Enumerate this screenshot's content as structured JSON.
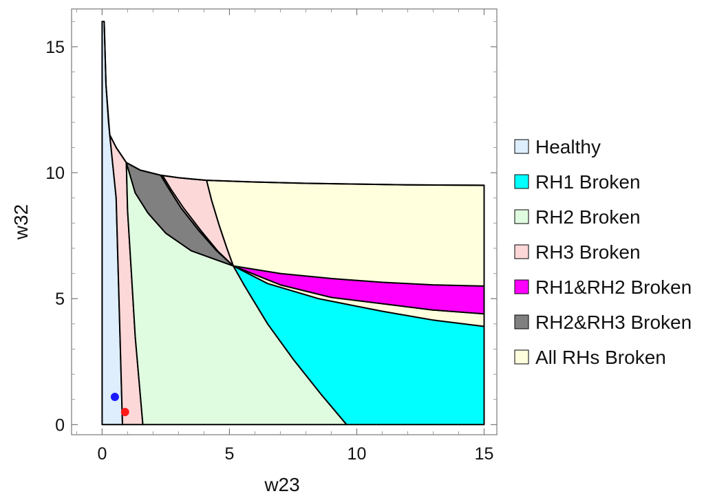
{
  "chart_data": {
    "type": "area",
    "title": "",
    "xlabel": "w23",
    "ylabel": "w32",
    "xlim": [
      -1.2,
      15.5
    ],
    "ylim": [
      -0.4,
      16.5
    ],
    "x_ticks": [
      0,
      5,
      10,
      15
    ],
    "y_ticks": [
      0,
      5,
      10,
      15
    ],
    "grid": false,
    "legend_position": "right",
    "legend": [
      {
        "key": "healthy",
        "label": "Healthy",
        "color": "#deeefc"
      },
      {
        "key": "rh1",
        "label": "RH1 Broken",
        "color": "#00ffff"
      },
      {
        "key": "rh2",
        "label": "RH2 Broken",
        "color": "#e0fce0"
      },
      {
        "key": "rh3",
        "label": "RH3 Broken",
        "color": "#fcd8d8"
      },
      {
        "key": "rh12",
        "label": "RH1&RH2 Broken",
        "color": "#ff00ff"
      },
      {
        "key": "rh23",
        "label": "RH2&RH3 Broken",
        "color": "#808080"
      },
      {
        "key": "all",
        "label": "All RHs Broken",
        "color": "#ffffde"
      }
    ],
    "regions": [
      {
        "key": "healthy",
        "points": [
          [
            0,
            0
          ],
          [
            0,
            16
          ],
          [
            0.08,
            16
          ],
          [
            0.15,
            13.5
          ],
          [
            0.25,
            12
          ],
          [
            0.3,
            11.5
          ],
          [
            0.55,
            9
          ],
          [
            0.8,
            0
          ]
        ]
      },
      {
        "key": "rh3",
        "points": [
          [
            0.8,
            0
          ],
          [
            0.55,
            9
          ],
          [
            0.3,
            11.5
          ],
          [
            0.55,
            11
          ],
          [
            0.75,
            10.7
          ],
          [
            0.95,
            10.4
          ],
          [
            1.0,
            8.5
          ],
          [
            1.15,
            6
          ],
          [
            1.3,
            3.5
          ],
          [
            1.6,
            0
          ]
        ]
      },
      {
        "key": "rh2",
        "points": [
          [
            1.6,
            0
          ],
          [
            1.3,
            3.5
          ],
          [
            1.15,
            6
          ],
          [
            1.0,
            8.5
          ],
          [
            0.95,
            10.4
          ],
          [
            1.3,
            9.2
          ],
          [
            1.8,
            8.4
          ],
          [
            2.5,
            7.6
          ],
          [
            3.5,
            6.9
          ],
          [
            5.15,
            6.3
          ],
          [
            5.6,
            5.5
          ],
          [
            6.5,
            4.0
          ],
          [
            7.5,
            2.6
          ],
          [
            8.6,
            1.2
          ],
          [
            9.6,
            0
          ]
        ]
      },
      {
        "key": "rh1",
        "points": [
          [
            9.6,
            0
          ],
          [
            8.6,
            1.2
          ],
          [
            7.5,
            2.6
          ],
          [
            6.5,
            4.0
          ],
          [
            5.6,
            5.5
          ],
          [
            5.15,
            6.3
          ],
          [
            6.5,
            5.6
          ],
          [
            8.5,
            5.0
          ],
          [
            11,
            4.5
          ],
          [
            13,
            4.15
          ],
          [
            15,
            3.9
          ],
          [
            15,
            0
          ]
        ]
      },
      {
        "key": "all",
        "points": [
          [
            5.15,
            6.3
          ],
          [
            7,
            5.55
          ],
          [
            9,
            5.05
          ],
          [
            11,
            4.8
          ],
          [
            13,
            4.55
          ],
          [
            15,
            4.4
          ],
          [
            15,
            3.9
          ],
          [
            13,
            4.15
          ],
          [
            11,
            4.5
          ],
          [
            8.5,
            5.0
          ],
          [
            6.5,
            5.6
          ]
        ]
      },
      {
        "key": "rh12",
        "points": [
          [
            5.15,
            6.3
          ],
          [
            7,
            6.0
          ],
          [
            9,
            5.8
          ],
          [
            11,
            5.65
          ],
          [
            13,
            5.55
          ],
          [
            15,
            5.5
          ],
          [
            15,
            4.4
          ],
          [
            13,
            4.55
          ],
          [
            11,
            4.8
          ],
          [
            9,
            5.05
          ],
          [
            7,
            5.55
          ]
        ]
      },
      {
        "key": "all",
        "points": [
          [
            4.1,
            9.7
          ],
          [
            6,
            9.63
          ],
          [
            8,
            9.58
          ],
          [
            10,
            9.55
          ],
          [
            12,
            9.52
          ],
          [
            15,
            9.5
          ],
          [
            15,
            5.5
          ],
          [
            13,
            5.55
          ],
          [
            11,
            5.65
          ],
          [
            9,
            5.8
          ],
          [
            7,
            6.0
          ],
          [
            5.15,
            6.3
          ],
          [
            4.9,
            7.0
          ],
          [
            4.6,
            7.9
          ],
          [
            4.3,
            8.9
          ]
        ]
      },
      {
        "key": "rh3",
        "points": [
          [
            2.3,
            9.9
          ],
          [
            3,
            9.8
          ],
          [
            3.5,
            9.75
          ],
          [
            4.1,
            9.7
          ],
          [
            4.3,
            8.9
          ],
          [
            4.6,
            7.9
          ],
          [
            4.9,
            7.0
          ],
          [
            5.15,
            6.3
          ],
          [
            4.5,
            6.9
          ],
          [
            3.8,
            7.7
          ],
          [
            3.1,
            8.6
          ],
          [
            2.6,
            9.4
          ]
        ]
      },
      {
        "key": "rh23",
        "points": [
          [
            0.95,
            10.4
          ],
          [
            1.5,
            10.1
          ],
          [
            2.3,
            9.9
          ],
          [
            2.6,
            9.4
          ],
          [
            3.1,
            8.6
          ],
          [
            3.8,
            7.7
          ],
          [
            4.5,
            6.9
          ],
          [
            5.15,
            6.3
          ],
          [
            3.5,
            6.9
          ],
          [
            2.5,
            7.6
          ],
          [
            1.8,
            8.4
          ],
          [
            1.3,
            9.2
          ]
        ]
      }
    ],
    "boundary_curves": [
      [
        [
          0.08,
          16
        ],
        [
          0.15,
          13.5
        ],
        [
          0.3,
          11.5
        ],
        [
          0.55,
          11
        ],
        [
          0.95,
          10.4
        ],
        [
          1.5,
          10.1
        ],
        [
          2.3,
          9.9
        ],
        [
          3,
          9.8
        ],
        [
          4.1,
          9.7
        ],
        [
          6,
          9.63
        ],
        [
          8,
          9.58
        ],
        [
          10,
          9.55
        ],
        [
          12,
          9.52
        ],
        [
          15,
          9.5
        ]
      ],
      [
        [
          2.3,
          9.9
        ],
        [
          2.6,
          9.4
        ],
        [
          3.1,
          8.6
        ],
        [
          3.8,
          7.7
        ],
        [
          4.5,
          6.9
        ],
        [
          5.15,
          6.3
        ]
      ],
      [
        [
          2.38,
          9.88
        ],
        [
          2.7,
          9.35
        ],
        [
          3.2,
          8.6
        ],
        [
          3.9,
          7.68
        ],
        [
          4.55,
          6.88
        ],
        [
          5.15,
          6.3
        ]
      ]
    ],
    "points": [
      {
        "x": 0.5,
        "y": 1.1,
        "color": "#1a1aff"
      },
      {
        "x": 0.9,
        "y": 0.5,
        "color": "#ff1a1a"
      }
    ]
  }
}
